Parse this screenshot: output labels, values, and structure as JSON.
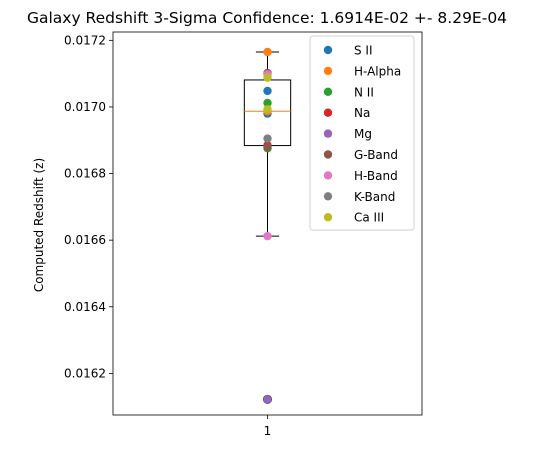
{
  "chart_data": {
    "type": "box",
    "title": "Galaxy Redshift 3-Sigma Confidence: 1.6914E-02 +- 8.29E-04",
    "xlabel": "",
    "ylabel": "Computed Redshift (z)",
    "x_ticks": [
      "1"
    ],
    "y_ticks": [
      "0.0162",
      "0.0164",
      "0.0166",
      "0.0168",
      "0.0170",
      "0.0172"
    ],
    "ylim": [
      0.016075,
      0.017225
    ],
    "xlim": [
      0.5,
      1.5
    ],
    "box": {
      "position": 1,
      "whisker_low": 0.016612,
      "q1": 0.016884,
      "median": 0.016987,
      "q3": 0.017081,
      "whisker_high": 0.017165,
      "outliers": [
        0.016122
      ]
    },
    "series": [
      {
        "name": "S II",
        "color": "#1f77b4",
        "values": [
          0.017048,
          0.01698
        ]
      },
      {
        "name": "H-Alpha",
        "color": "#ff7f0e",
        "values": [
          0.017165,
          0.016987
        ]
      },
      {
        "name": "N II",
        "color": "#2ca02c",
        "values": [
          0.017012,
          0.016876
        ]
      },
      {
        "name": "Na",
        "color": "#d62728",
        "values": [
          0.016885
        ]
      },
      {
        "name": "Mg",
        "color": "#9467bd",
        "values": [
          0.016122
        ]
      },
      {
        "name": "G-Band",
        "color": "#8c564b",
        "values": [
          0.017102,
          0.01688
        ]
      },
      {
        "name": "H-Band",
        "color": "#e377c2",
        "values": [
          0.016612,
          0.017098
        ]
      },
      {
        "name": "K-Band",
        "color": "#7f7f7f",
        "values": [
          0.016905
        ]
      },
      {
        "name": "Ca III",
        "color": "#bcbd22",
        "values": [
          0.017088,
          0.016993
        ]
      }
    ],
    "legend_position": "top-right",
    "grid": false
  }
}
